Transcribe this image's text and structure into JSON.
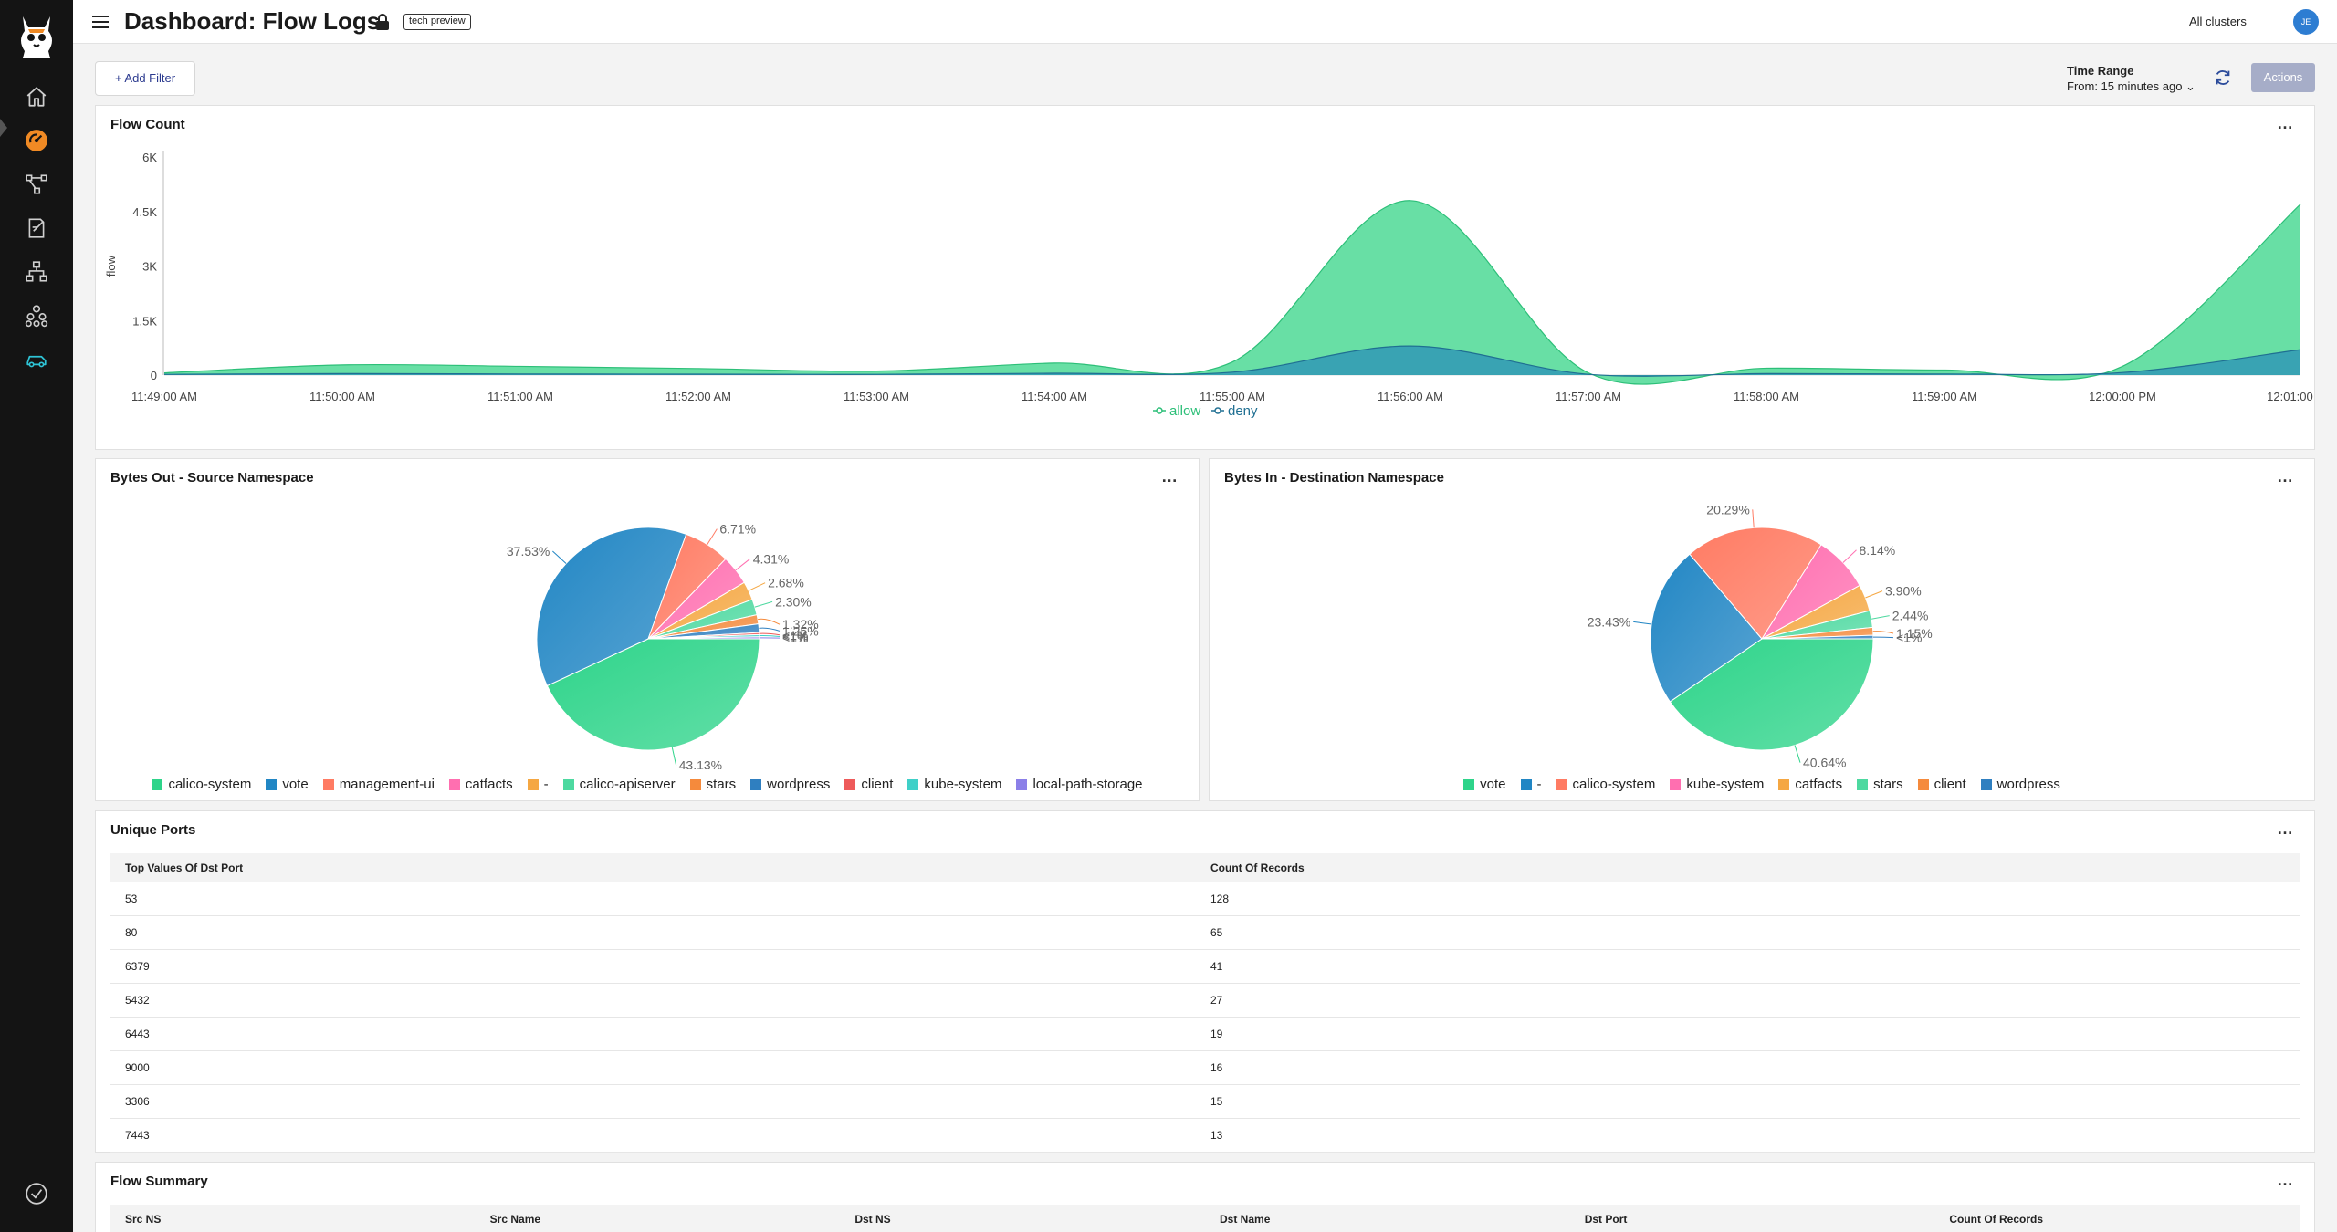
{
  "header": {
    "title": "Dashboard: Flow Logs",
    "badge": "tech preview",
    "cluster": "All clusters",
    "avatar": "JE"
  },
  "toolbar": {
    "add_filter": "+ Add Filter",
    "time_range_label": "Time Range",
    "time_range_value": "From: 15 minutes ago ⌄",
    "actions": "Actions"
  },
  "flow_count": {
    "title": "Flow Count",
    "menu": "…"
  },
  "bytes_out": {
    "title": "Bytes Out - Source Namespace",
    "menu": "…"
  },
  "bytes_in": {
    "title": "Bytes In - Destination Namespace",
    "menu": "…"
  },
  "unique_ports": {
    "title": "Unique Ports",
    "menu": "…",
    "columns": [
      "Top Values Of Dst Port",
      "Count Of Records"
    ],
    "rows": [
      {
        "port": "53",
        "count": "128"
      },
      {
        "port": "80",
        "count": "65"
      },
      {
        "port": "6379",
        "count": "41"
      },
      {
        "port": "5432",
        "count": "27"
      },
      {
        "port": "6443",
        "count": "19"
      },
      {
        "port": "9000",
        "count": "16"
      },
      {
        "port": "3306",
        "count": "15"
      },
      {
        "port": "7443",
        "count": "13"
      }
    ]
  },
  "flow_summary": {
    "title": "Flow Summary",
    "menu": "…",
    "columns": [
      "Src NS",
      "Src Name",
      "Dst NS",
      "Dst Name",
      "Dst Port",
      "Count Of Records"
    ]
  },
  "colors": {
    "allow": "#3dd68c",
    "deny": "#2a8fb8",
    "accent": "#f08a24"
  },
  "chart_data": [
    {
      "type": "area",
      "title": "Flow Count",
      "ylabel": "flow",
      "ylim": [
        0,
        6000
      ],
      "yticks": [
        "0",
        "1.5K",
        "3K",
        "4.5K",
        "6K"
      ],
      "yticks_values": [
        0,
        1500,
        3000,
        4500,
        6000
      ],
      "categories": [
        "11:49:00 AM",
        "11:50:00 AM",
        "11:51:00 AM",
        "11:52:00 AM",
        "11:53:00 AM",
        "11:54:00 AM",
        "11:55:00 AM",
        "11:56:00 AM",
        "11:57:00 AM",
        "11:58:00 AM",
        "11:59:00 AM",
        "12:00:00 PM",
        "12:01:00 PM"
      ],
      "series": [
        {
          "name": "allow",
          "values": [
            60,
            280,
            240,
            180,
            110,
            330,
            360,
            4800,
            60,
            190,
            140,
            240,
            4700
          ]
        },
        {
          "name": "deny",
          "values": [
            20,
            40,
            30,
            25,
            20,
            50,
            80,
            800,
            20,
            40,
            30,
            70,
            700
          ]
        }
      ]
    },
    {
      "type": "pie",
      "title": "Bytes Out - Source Namespace",
      "labels": [
        "calico-system",
        "vote",
        "management-ui",
        "catfacts",
        "-",
        "calico-apiserver",
        "stars",
        "wordpress",
        "client",
        "kube-system",
        "local-path-storage"
      ],
      "values": [
        43.13,
        37.53,
        6.71,
        4.31,
        2.68,
        2.3,
        1.32,
        1.25,
        0.3,
        0.3,
        0.3
      ],
      "data_labels": [
        "43.13%",
        "37.53%",
        "6.71%",
        "4.31%",
        "2.68%",
        "2.30%",
        "1.32%",
        "1.25%",
        "<1%",
        "<1%",
        "<1%"
      ],
      "colors": [
        "#2ed48a",
        "#2186c4",
        "#ff7b63",
        "#ff6fb0",
        "#f5a742",
        "#4dd9a0",
        "#f58a3c",
        "#2f7fc0",
        "#ee5a5a",
        "#3fd0c8",
        "#8b7fe8"
      ]
    },
    {
      "type": "pie",
      "title": "Bytes In - Destination Namespace",
      "labels": [
        "vote",
        "-",
        "calico-system",
        "kube-system",
        "catfacts",
        "stars",
        "client",
        "wordpress"
      ],
      "values": [
        40.64,
        23.43,
        20.29,
        8.14,
        3.9,
        2.44,
        1.15,
        0.5
      ],
      "data_labels": [
        "40.64%",
        "23.43%",
        "20.29%",
        "8.14%",
        "3.90%",
        "2.44%",
        "1.15%",
        "<1%"
      ],
      "colors": [
        "#2ed48a",
        "#2186c4",
        "#ff7b63",
        "#ff6fb0",
        "#f5a742",
        "#4dd9a0",
        "#f58a3c",
        "#2f7fc0"
      ]
    }
  ]
}
